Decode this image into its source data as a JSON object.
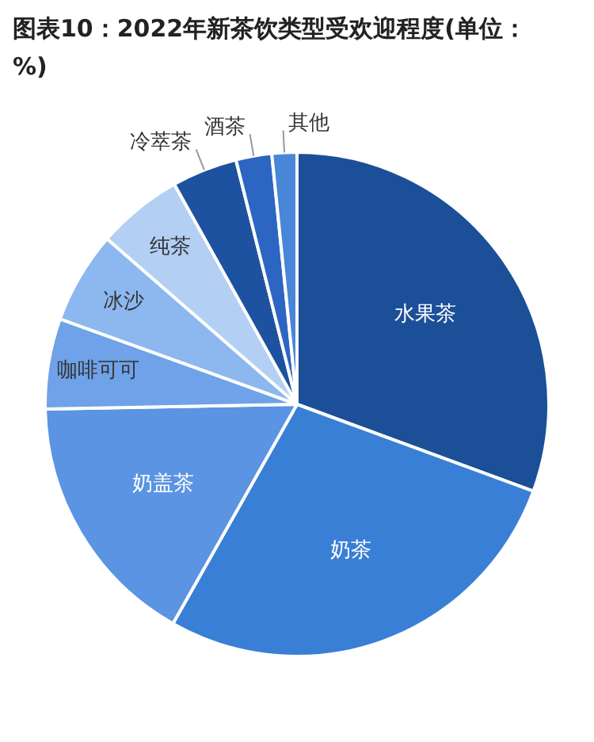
{
  "chart_data": {
    "type": "pie",
    "title": "图表10：2022年新茶饮类型受欢迎程度(单位：%)",
    "categories": [
      "水果茶",
      "奶茶",
      "奶盖茶",
      "咖啡可可",
      "冰沙",
      "纯茶",
      "冷萃茶",
      "酒茶",
      "其他"
    ],
    "values": [
      30.6,
      27.6,
      16.5,
      5.8,
      5.9,
      5.5,
      4.2,
      2.3,
      1.6
    ],
    "colors": [
      "#1b4f98",
      "#3a7fd6",
      "#5a94e2",
      "#6fa2e8",
      "#8cb7ef",
      "#b3cff4",
      "#1d52a0",
      "#2c66c2",
      "#4a86d8"
    ],
    "legend": false
  }
}
